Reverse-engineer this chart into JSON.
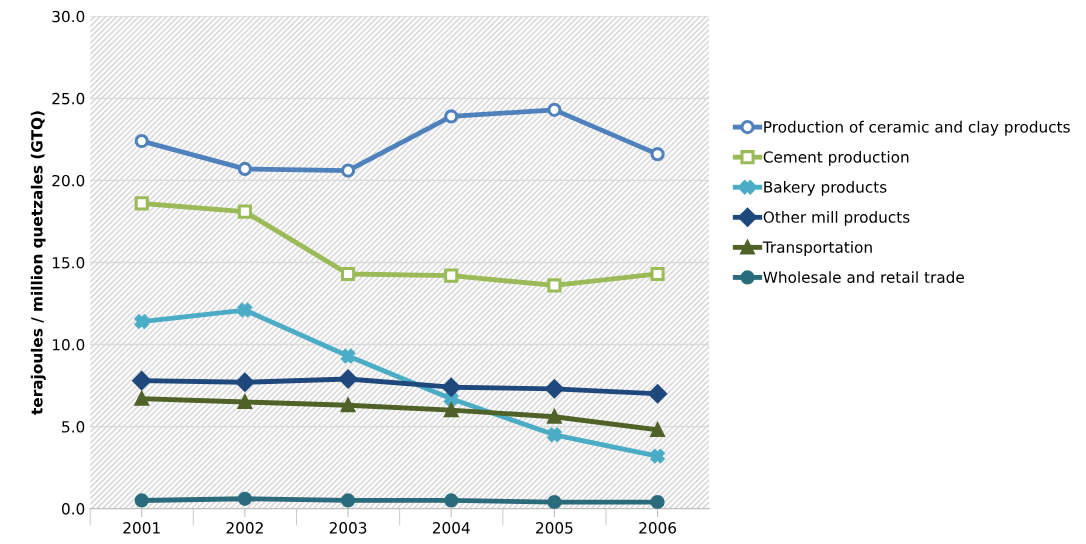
{
  "chart_data": {
    "type": "line",
    "ylabel": "terajoules / million quetzales (GTQ)",
    "categories": [
      "2001",
      "2002",
      "2003",
      "2004",
      "2005",
      "2006"
    ],
    "ylim": [
      0,
      30
    ],
    "yticks": [
      {
        "value": 0,
        "label": "0.0"
      },
      {
        "value": 5,
        "label": "5.0"
      },
      {
        "value": 10,
        "label": "10.0"
      },
      {
        "value": 15,
        "label": "15.0"
      },
      {
        "value": 20,
        "label": "20.0"
      },
      {
        "value": 25,
        "label": "25.0"
      },
      {
        "value": 30,
        "label": "30.0"
      }
    ],
    "grid": "y",
    "legend": "right",
    "line_style": "solid",
    "series": [
      {
        "name": "Production of ceramic and clay products",
        "color": "#4f81bd",
        "marker": "circle",
        "values": [
          22.4,
          20.7,
          20.6,
          23.9,
          24.3,
          21.6
        ]
      },
      {
        "name": "Cement production",
        "color": "#9bbb59",
        "marker": "square",
        "values": [
          18.6,
          18.1,
          14.3,
          14.2,
          13.6,
          14.3
        ]
      },
      {
        "name": "Bakery products",
        "color": "#4bacc6",
        "marker": "cross",
        "values": [
          11.4,
          12.1,
          9.3,
          6.7,
          4.5,
          3.2
        ]
      },
      {
        "name": "Other mill products",
        "color": "#1f497d",
        "marker": "diamond",
        "values": [
          7.8,
          7.7,
          7.9,
          7.4,
          7.3,
          7.0
        ]
      },
      {
        "name": "Transportation",
        "color": "#4f6228",
        "marker": "triangle",
        "values": [
          6.7,
          6.5,
          6.3,
          6.0,
          5.6,
          4.8
        ]
      },
      {
        "name": "Wholesale and retail trade",
        "color": "#2b6c7c",
        "marker": "circle",
        "values": [
          0.5,
          0.6,
          0.5,
          0.5,
          0.4,
          0.4
        ]
      }
    ]
  }
}
